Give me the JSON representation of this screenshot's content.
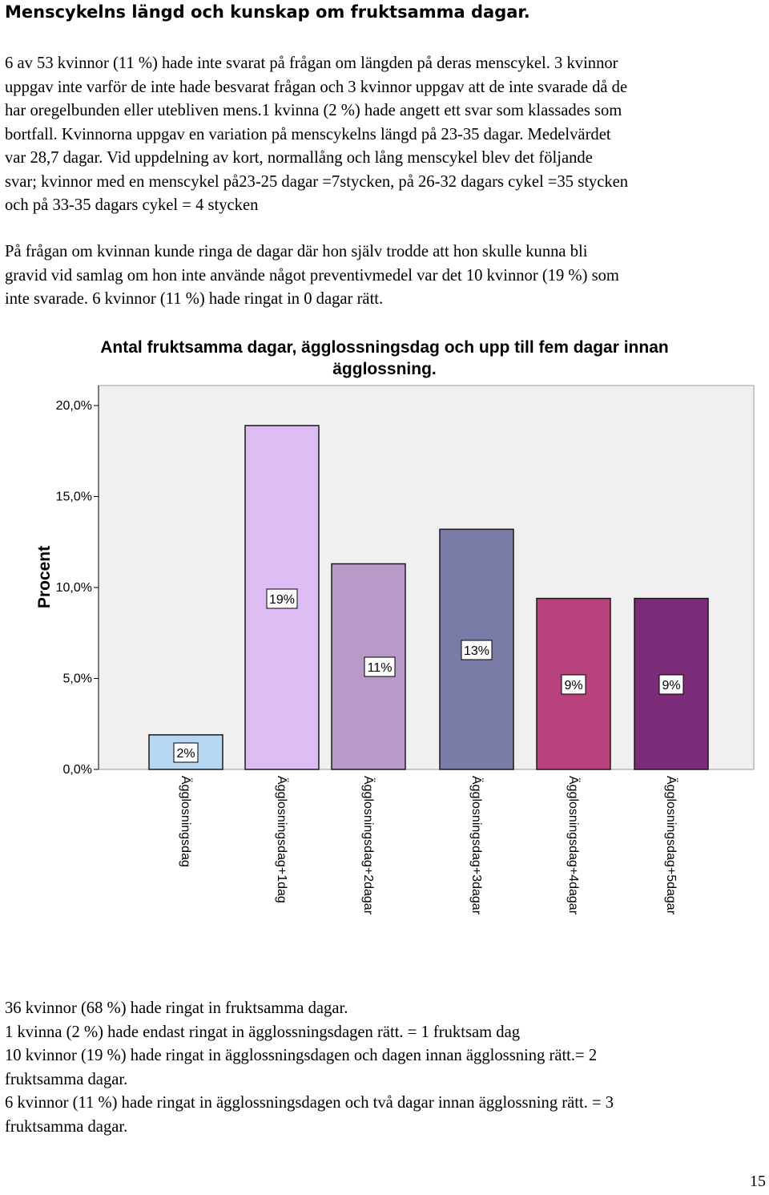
{
  "heading": "Menscykelns längd och kunskap om fruktsamma dagar.",
  "paragraph1": [
    "6 av 53 kvinnor (11 %) hade inte svarat på frågan om längden på deras menscykel. 3 kvinnor",
    "uppgav inte varför de inte hade besvarat frågan och 3 kvinnor uppgav att de inte svarade då de",
    "har oregelbunden eller utebliven mens.1 kvinna (2 %) hade angett ett svar som klassades som",
    "bortfall. Kvinnorna uppgav en variation på menscykelns längd på 23-35 dagar. Medelvärdet",
    "var 28,7 dagar. Vid uppdelning av kort, normallång och lång menscykel blev det följande",
    "svar; kvinnor med en menscykel på23-25 dagar =7stycken, på 26-32 dagars cykel =35 stycken",
    "och på 33-35 dagars cykel = 4 stycken"
  ],
  "paragraph2": [
    "På frågan om kvinnan kunde ringa de dagar där hon själv trodde att hon skulle kunna bli",
    "gravid vid samlag om hon inte använde något preventivmedel var det 10 kvinnor (19 %) som",
    "inte svarade. 6 kvinnor (11 %) hade ringat in 0 dagar rätt."
  ],
  "paragraph3": [
    "36 kvinnor (68 %) hade ringat in fruktsamma dagar.",
    "1 kvinna (2 %) hade endast ringat in ägglossningsdagen rätt. = 1 fruktsam dag",
    "10 kvinnor (19 %) hade ringat in ägglossningsdagen och dagen innan ägglossning rätt.= 2",
    "fruktsamma dagar.",
    "6 kvinnor (11 %) hade ringat in ägglossningsdagen och två dagar innan ägglossning rätt. = 3",
    "fruktsamma dagar."
  ],
  "page_number": "15",
  "chart_data": {
    "type": "bar",
    "title_lines": [
      "Antal fruktsamma dagar, ägglossningsdag och upp till fem dagar innan",
      "ägglossning."
    ],
    "ylabel": "Procent",
    "xlabel": "",
    "ylim": [
      0,
      21
    ],
    "yticks": [
      0,
      5,
      10,
      15,
      20
    ],
    "ytick_labels": [
      "0,0%",
      "5,0%",
      "10,0%",
      "15,0%",
      "20,0%"
    ],
    "categories": [
      "Ägglosningsdag",
      "Ägglosningsdag+1dag",
      "Ägglosningsdag+2dagar",
      "Ägglosningsdag+3dagar",
      "Ägglosningsdag+4dagar",
      "Ägglosningsdag+5dagar"
    ],
    "values": [
      1.9,
      18.9,
      11.3,
      13.2,
      9.4,
      9.4
    ],
    "data_labels": [
      "2%",
      "19%",
      "11%",
      "13%",
      "9%",
      "9%"
    ],
    "colors": [
      "#b6d6f2",
      "#dcbcf3",
      "#b89ac8",
      "#7b7ba8",
      "#b8427b",
      "#7c2b78"
    ],
    "plot_background": "#f0f0f0",
    "grid": false,
    "legend": "none"
  }
}
